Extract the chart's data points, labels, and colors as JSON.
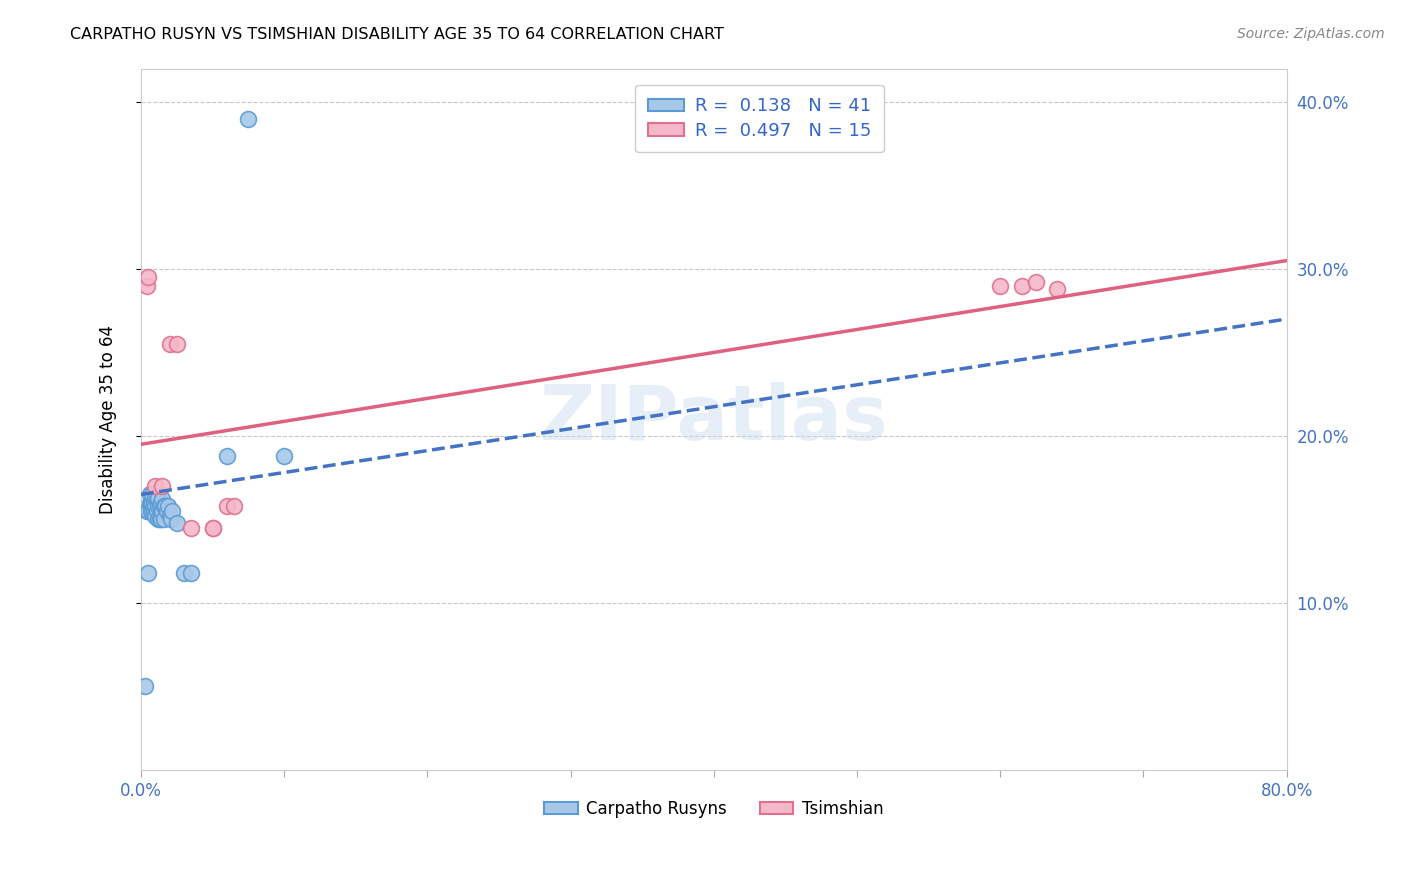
{
  "title": "CARPATHO RUSYN VS TSIMSHIAN DISABILITY AGE 35 TO 64 CORRELATION CHART",
  "source": "Source: ZipAtlas.com",
  "ylabel": "Disability Age 35 to 64",
  "xmin": 0.0,
  "xmax": 0.8,
  "ymin": 0.0,
  "ymax": 0.42,
  "yticks": [
    0.1,
    0.2,
    0.3,
    0.4
  ],
  "ytick_labels": [
    "10.0%",
    "20.0%",
    "30.0%",
    "40.0%"
  ],
  "xticks": [
    0.0,
    0.1,
    0.2,
    0.3,
    0.4,
    0.5,
    0.6,
    0.7,
    0.8
  ],
  "xtick_labels": [
    "0.0%",
    "",
    "",
    "",
    "",
    "",
    "",
    "",
    "80.0%"
  ],
  "blue_R": 0.138,
  "blue_N": 41,
  "pink_R": 0.497,
  "pink_N": 15,
  "blue_scatter_color": "#A8C8E8",
  "blue_scatter_edge": "#5B9BD5",
  "pink_scatter_color": "#F4B8C8",
  "pink_scatter_edge": "#E07090",
  "blue_line_color": "#4472C4",
  "pink_line_color": "#E06080",
  "watermark": "ZIPatlas",
  "legend_labels": [
    "Carpatho Rusyns",
    "Tsimshian"
  ],
  "blue_line_start_y": 0.165,
  "blue_line_end_y": 0.27,
  "pink_line_start_y": 0.195,
  "pink_line_end_y": 0.305,
  "blue_scatter_x": [
    0.004,
    0.005,
    0.006,
    0.006,
    0.007,
    0.007,
    0.008,
    0.008,
    0.008,
    0.009,
    0.009,
    0.01,
    0.01,
    0.01,
    0.011,
    0.011,
    0.012,
    0.012,
    0.012,
    0.013,
    0.013,
    0.014,
    0.014,
    0.015,
    0.015,
    0.016,
    0.016,
    0.017,
    0.018,
    0.019,
    0.02,
    0.021,
    0.022,
    0.025,
    0.03,
    0.035,
    0.06,
    0.075,
    0.1,
    0.005,
    0.003
  ],
  "blue_scatter_y": [
    0.155,
    0.155,
    0.16,
    0.165,
    0.155,
    0.16,
    0.155,
    0.16,
    0.165,
    0.155,
    0.16,
    0.152,
    0.158,
    0.163,
    0.155,
    0.162,
    0.15,
    0.158,
    0.163,
    0.15,
    0.158,
    0.15,
    0.16,
    0.155,
    0.162,
    0.15,
    0.158,
    0.158,
    0.155,
    0.158,
    0.152,
    0.15,
    0.155,
    0.148,
    0.118,
    0.118,
    0.188,
    0.39,
    0.188,
    0.118,
    0.05
  ],
  "pink_scatter_x": [
    0.004,
    0.005,
    0.01,
    0.015,
    0.02,
    0.025,
    0.035,
    0.05,
    0.06,
    0.065,
    0.6,
    0.615,
    0.625,
    0.64,
    0.05
  ],
  "pink_scatter_y": [
    0.29,
    0.295,
    0.17,
    0.17,
    0.255,
    0.255,
    0.145,
    0.145,
    0.158,
    0.158,
    0.29,
    0.29,
    0.292,
    0.288,
    0.145
  ]
}
